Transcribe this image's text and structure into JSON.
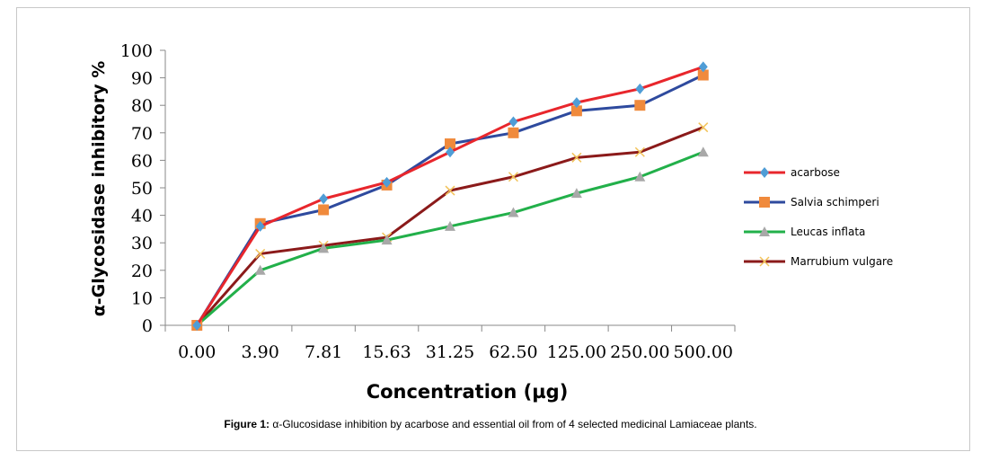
{
  "chart_data": {
    "type": "line",
    "categories": [
      "0.00",
      "3.90",
      "7.81",
      "15.63",
      "31.25",
      "62.50",
      "125.00",
      "250.00",
      "500.00"
    ],
    "xlabel": "Concentration (µg)",
    "ylabel": "α-Glycosidase inhibitory %",
    "ylim": [
      0,
      100
    ],
    "yticks": [
      "0",
      "10",
      "20",
      "30",
      "40",
      "50",
      "60",
      "70",
      "80",
      "90",
      "100"
    ],
    "grid": false,
    "legend_position": "right",
    "series": [
      {
        "name": "acarbose",
        "color": "#e8262c",
        "marker": "diamond",
        "marker_color": "#4f9dd6",
        "values": [
          0,
          36,
          46,
          52,
          63,
          74,
          81,
          86,
          94
        ]
      },
      {
        "name": "Salvia schimperi",
        "color": "#2e4a9e",
        "marker": "square",
        "marker_color": "#f08a3c",
        "values": [
          0,
          37,
          42,
          51,
          66,
          70,
          78,
          80,
          91
        ]
      },
      {
        "name": "Leucas  inflata",
        "color": "#22b04a",
        "marker": "triangle",
        "marker_color": "#a8a8a8",
        "values": [
          0,
          20,
          28,
          31,
          36,
          41,
          48,
          54,
          63
        ]
      },
      {
        "name": "Marrubium vulgare",
        "color": "#8b1a1a",
        "marker": "x",
        "marker_color": "#f2c35a",
        "values": [
          0,
          26,
          29,
          32,
          49,
          54,
          61,
          63,
          72
        ]
      }
    ]
  },
  "caption": {
    "label": "Figure 1:",
    "text": " α-Glucosidase inhibition by acarbose and  essential oil from of 4 selected medicinal Lamiaceae plants."
  }
}
